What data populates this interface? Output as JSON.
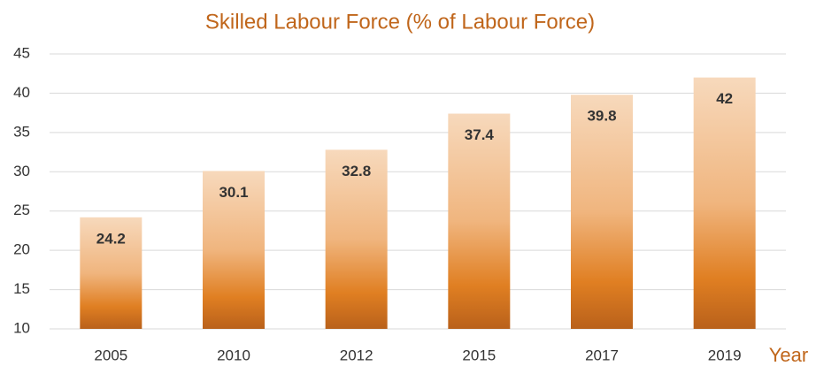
{
  "chart_data": {
    "type": "bar",
    "title": "Skilled Labour Force (% of Labour Force)",
    "x_label": "Year",
    "categories": [
      "2005",
      "2010",
      "2012",
      "2015",
      "2017",
      "2019"
    ],
    "values": [
      24.2,
      30.1,
      32.8,
      37.4,
      39.8,
      42
    ],
    "color": "#e07f22",
    "ylim": [
      10,
      45
    ],
    "yticks": [
      10,
      15,
      20,
      25,
      30,
      35,
      40,
      45
    ],
    "grid": true
  }
}
